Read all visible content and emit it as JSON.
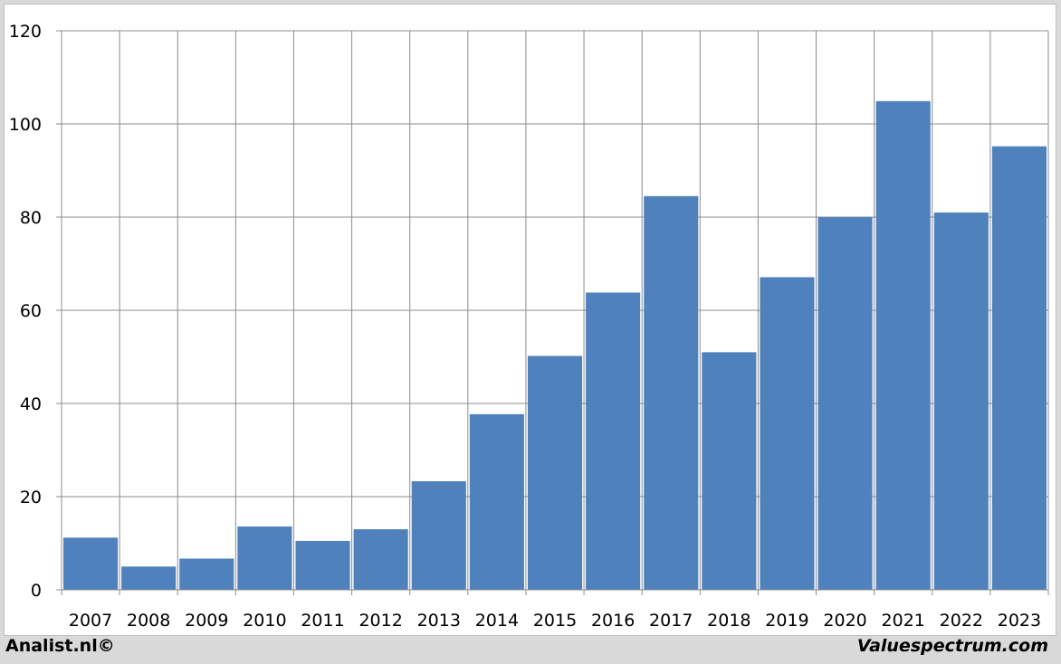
{
  "chart_data": {
    "type": "bar",
    "categories": [
      "2007",
      "2008",
      "2009",
      "2010",
      "2011",
      "2012",
      "2013",
      "2014",
      "2015",
      "2016",
      "2017",
      "2018",
      "2019",
      "2020",
      "2021",
      "2022",
      "2023"
    ],
    "values": [
      11.2,
      5.0,
      6.7,
      13.6,
      10.5,
      13.0,
      23.3,
      37.7,
      50.2,
      63.8,
      84.5,
      51.0,
      67.1,
      80.0,
      104.9,
      81.0,
      95.2
    ],
    "y_ticks": [
      "0",
      "20",
      "40",
      "60",
      "80",
      "100",
      "120"
    ],
    "ylim": [
      0,
      120
    ],
    "grid": true,
    "bar_color": "#4f81bd",
    "title": "",
    "xlabel": "",
    "ylabel": ""
  },
  "footer": {
    "left_text": "Analist.nl©",
    "right_text": "Valuespectrum.com"
  }
}
